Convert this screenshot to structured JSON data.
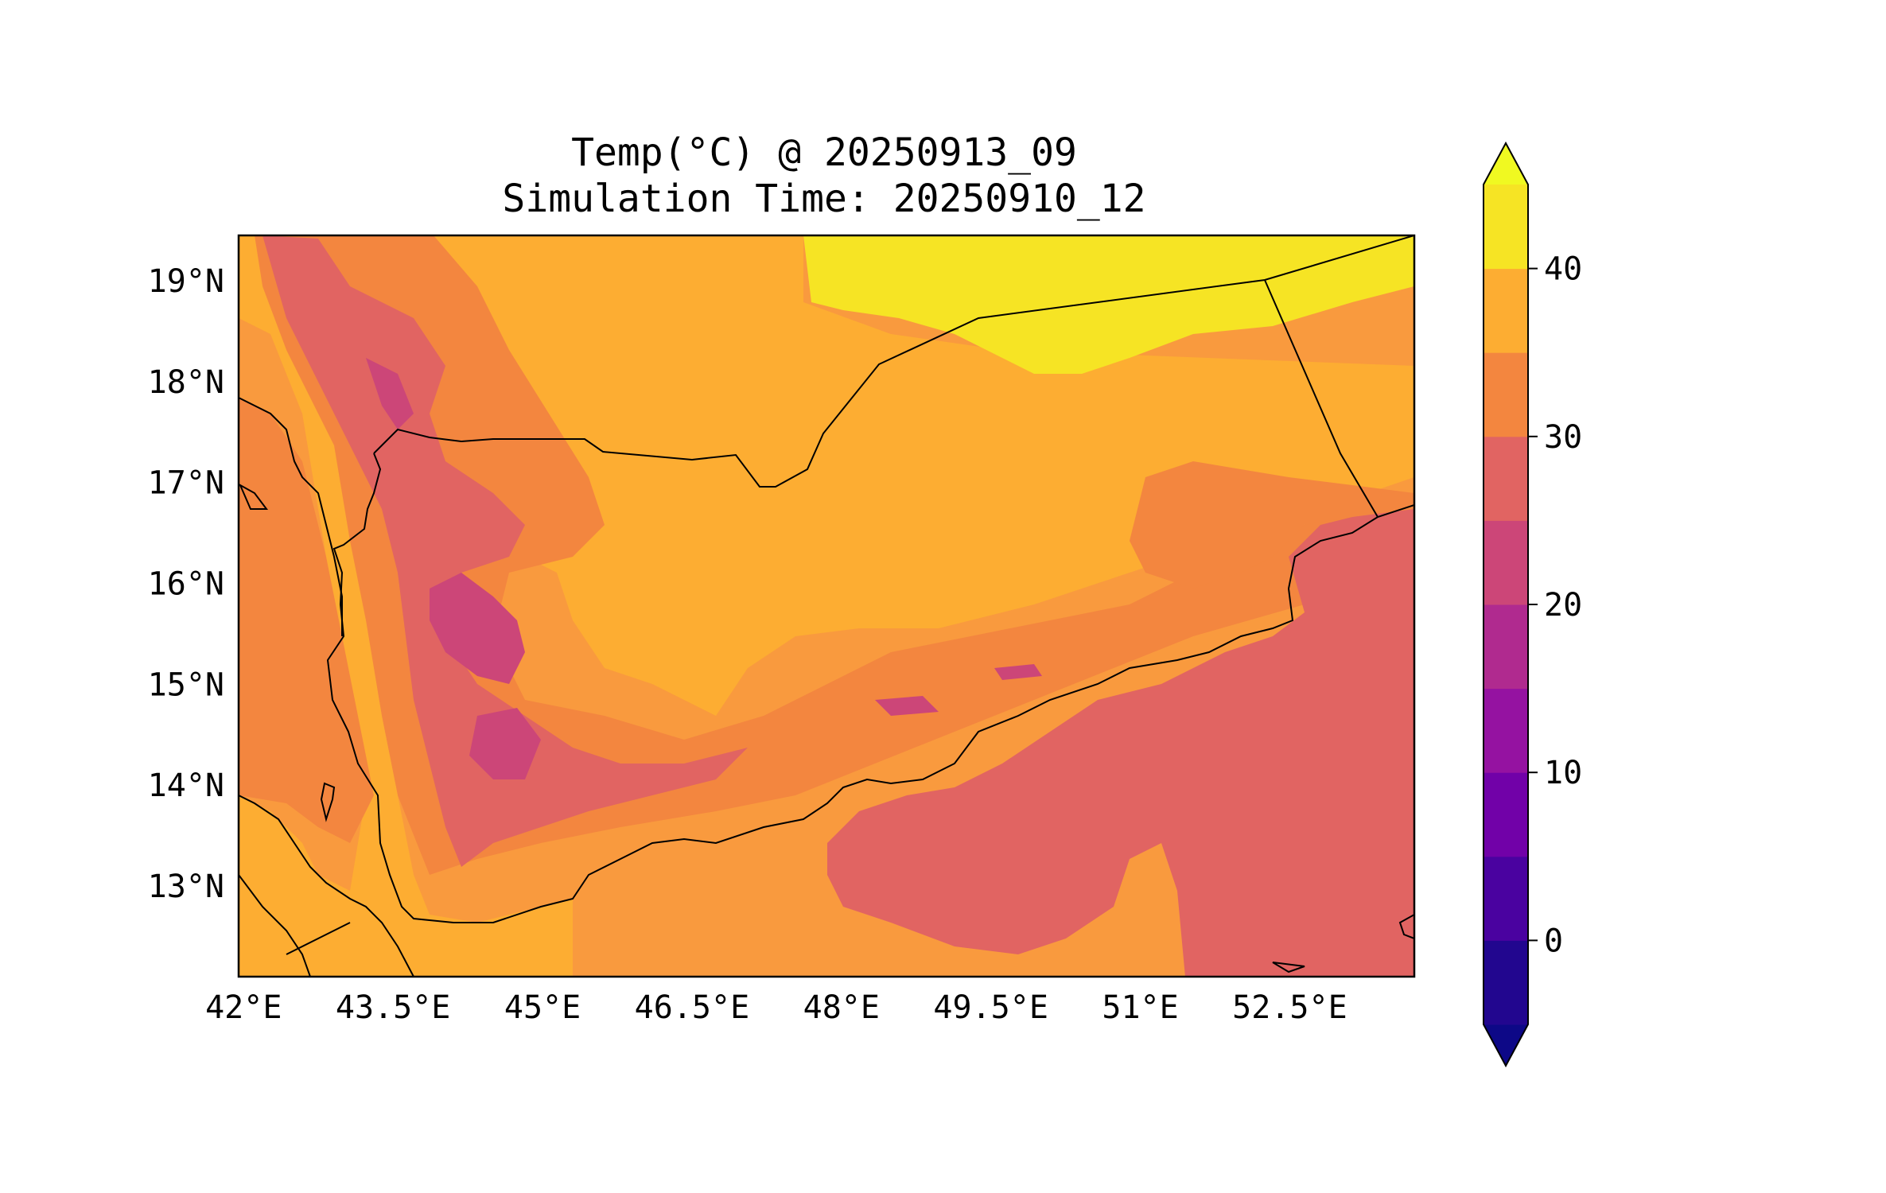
{
  "title": {
    "line1": "Temp(°C) @ 20250913_09",
    "line2": "Simulation Time: 20250910_12"
  },
  "map": {
    "lon_range": [
      41.95,
      53.75
    ],
    "lat_range": [
      12.1,
      19.45
    ],
    "x_ticks": [
      {
        "value": 42.0,
        "label": "42°E"
      },
      {
        "value": 43.5,
        "label": "43.5°E"
      },
      {
        "value": 45.0,
        "label": "45°E"
      },
      {
        "value": 46.5,
        "label": "46.5°E"
      },
      {
        "value": 48.0,
        "label": "48°E"
      },
      {
        "value": 49.5,
        "label": "49.5°E"
      },
      {
        "value": 51.0,
        "label": "51°E"
      },
      {
        "value": 52.5,
        "label": "52.5°E"
      }
    ],
    "y_ticks": [
      {
        "value": 19,
        "label": "19°N"
      },
      {
        "value": 18,
        "label": "18°N"
      },
      {
        "value": 17,
        "label": "17°N"
      },
      {
        "value": 16,
        "label": "16°N"
      },
      {
        "value": 15,
        "label": "15°N"
      },
      {
        "value": 14,
        "label": "14°N"
      },
      {
        "value": 13,
        "label": "13°N"
      }
    ],
    "background_color": "#f99a3e"
  },
  "colorbar": {
    "range": [
      -5,
      45
    ],
    "extend": "both",
    "levels": [
      -5,
      0,
      5,
      10,
      15,
      20,
      25,
      30,
      35,
      40,
      45
    ],
    "colors": [
      "#22068f",
      "#4a02a0",
      "#7101a8",
      "#9512a1",
      "#b02a8f",
      "#cc4678",
      "#e16462",
      "#f3863f",
      "#fdad32",
      "#f6e424"
    ],
    "under_color": "#0d0887",
    "over_color": "#f0f921",
    "ticks": [
      {
        "value": 0,
        "label": "0"
      },
      {
        "value": 10,
        "label": "10"
      },
      {
        "value": 20,
        "label": "20"
      },
      {
        "value": 30,
        "label": "30"
      },
      {
        "value": 40,
        "label": "40"
      }
    ]
  }
}
